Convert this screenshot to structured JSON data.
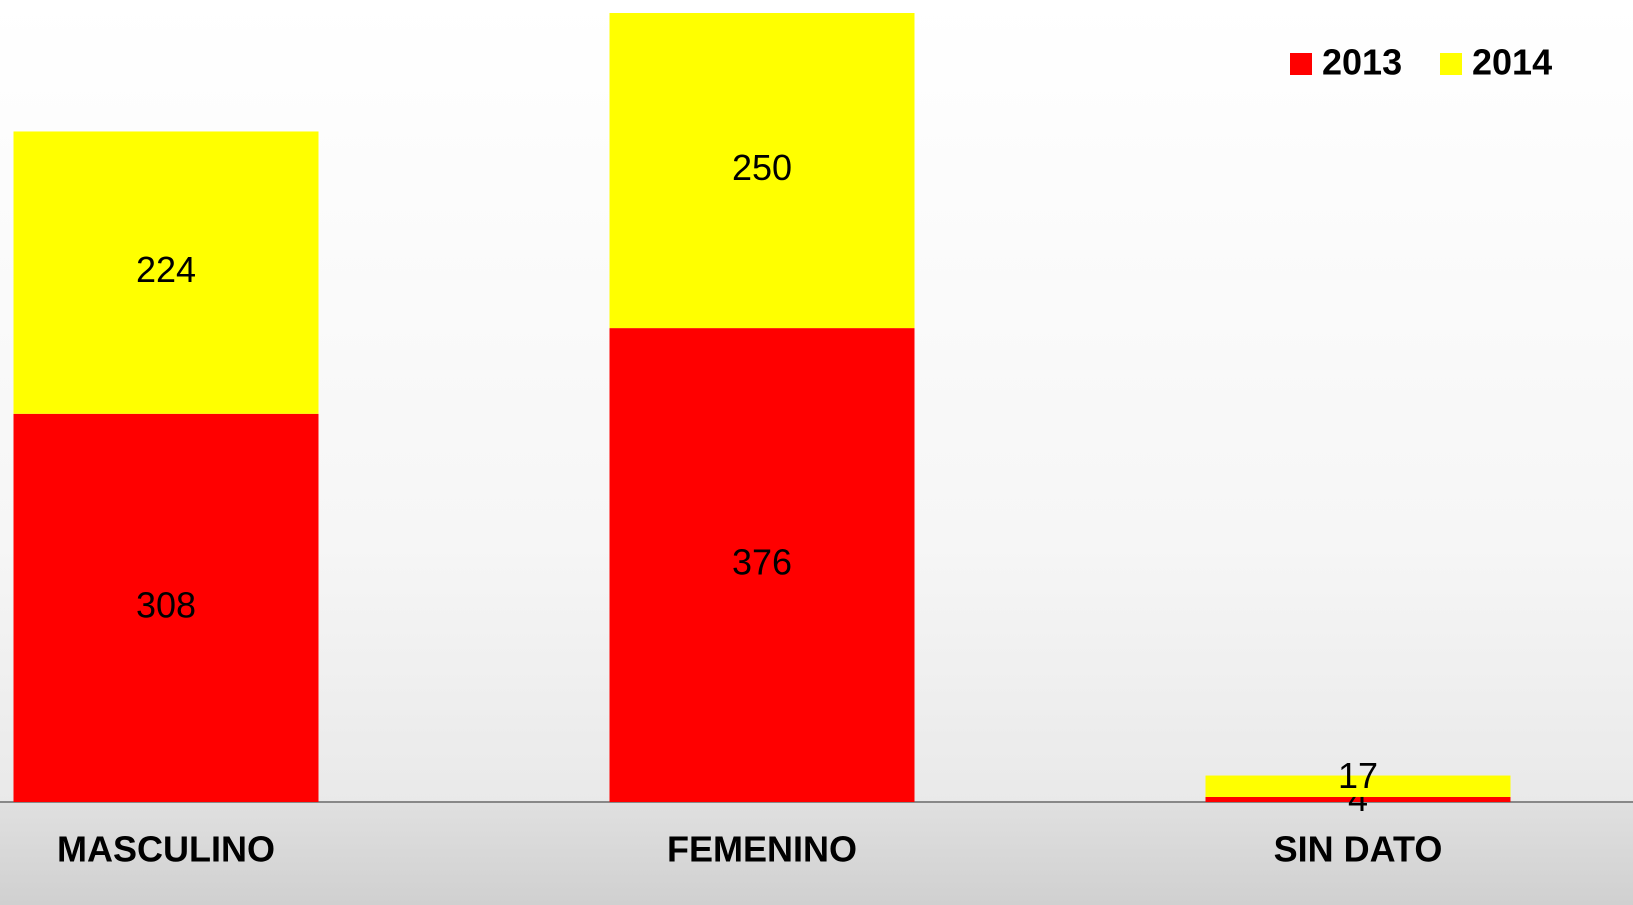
{
  "chart_data": {
    "type": "bar",
    "stacked": true,
    "categories": [
      "MASCULINO",
      "FEMENINO",
      "SIN DATO"
    ],
    "series": [
      {
        "name": "2013",
        "color": "#ff0000",
        "values": [
          308,
          376,
          4
        ]
      },
      {
        "name": "2014",
        "color": "#ffff00",
        "values": [
          224,
          250,
          17
        ]
      }
    ],
    "legend": "top-right"
  }
}
